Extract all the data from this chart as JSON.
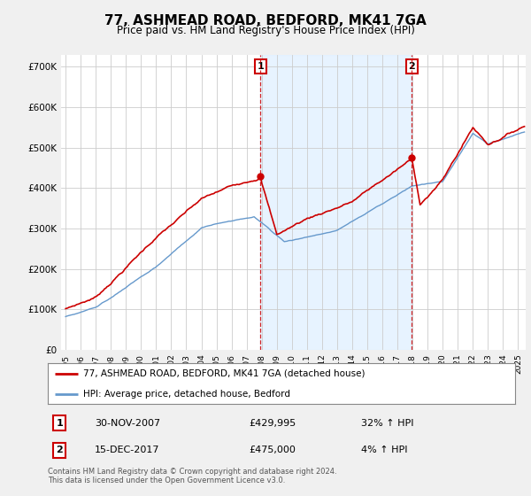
{
  "title": "77, ASHMEAD ROAD, BEDFORD, MK41 7GA",
  "subtitle": "Price paid vs. HM Land Registry's House Price Index (HPI)",
  "hpi_label": "HPI: Average price, detached house, Bedford",
  "price_label": "77, ASHMEAD ROAD, BEDFORD, MK41 7GA (detached house)",
  "footnote": "Contains HM Land Registry data © Crown copyright and database right 2024.\nThis data is licensed under the Open Government Licence v3.0.",
  "transaction1": {
    "num": "1",
    "date": "30-NOV-2007",
    "price": "£429,995",
    "hpi": "32% ↑ HPI"
  },
  "transaction2": {
    "num": "2",
    "date": "15-DEC-2017",
    "price": "£475,000",
    "hpi": "4% ↑ HPI"
  },
  "vline1_x": 2007.917,
  "vline2_x": 2017.958,
  "point1_y": 429995,
  "point2_y": 475000,
  "ylim": [
    0,
    730000
  ],
  "yticks": [
    0,
    100000,
    200000,
    300000,
    400000,
    500000,
    600000,
    700000
  ],
  "ytick_labels": [
    "£0",
    "£100K",
    "£200K",
    "£300K",
    "£400K",
    "£500K",
    "£600K",
    "£700K"
  ],
  "red_color": "#cc0000",
  "blue_color": "#6699cc",
  "fill_color": "#ddeeff",
  "background_color": "#f0f0f0",
  "plot_bg_color": "#ffffff",
  "xlim_left": 1994.7,
  "xlim_right": 2025.5
}
